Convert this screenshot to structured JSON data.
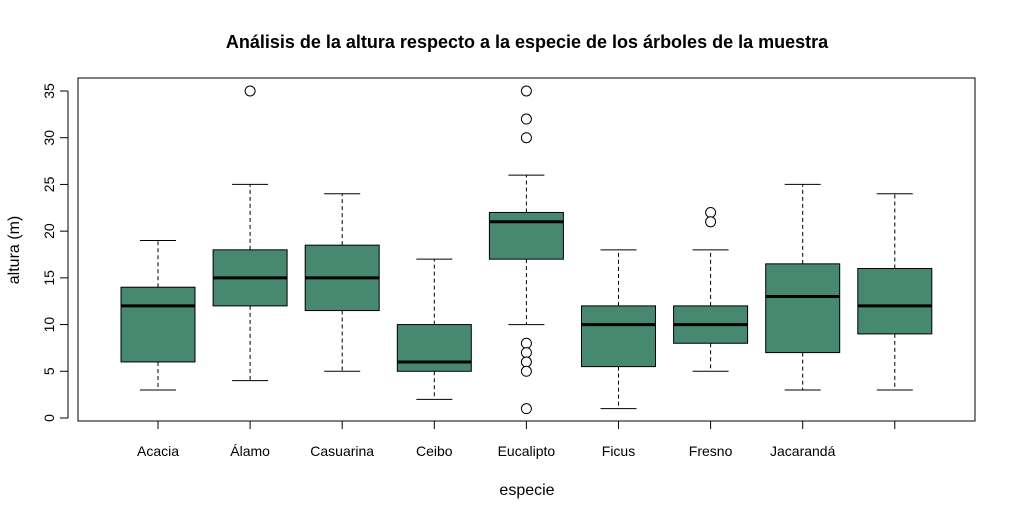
{
  "chart_data": {
    "type": "boxplot",
    "title": "Análisis de la altura respecto a la especie de los árboles de la muestra",
    "xlabel": "especie",
    "ylabel": "altura (m)",
    "ylim": [
      0,
      35
    ],
    "yticks": [
      0,
      5,
      10,
      15,
      20,
      25,
      30,
      35
    ],
    "grid": false,
    "box_color": "#468970",
    "categories": [
      "Acacia",
      "Álamo",
      "Casuarina",
      "Ceibo",
      "Eucalipto",
      "Ficus",
      "Fresno",
      "Jacarandá",
      ""
    ],
    "boxes": [
      {
        "whisker_low": 3,
        "q1": 6,
        "median": 12,
        "q3": 14,
        "whisker_high": 19,
        "outliers": []
      },
      {
        "whisker_low": 4,
        "q1": 12,
        "median": 15,
        "q3": 18,
        "whisker_high": 25,
        "outliers": [
          35
        ]
      },
      {
        "whisker_low": 5,
        "q1": 11.5,
        "median": 15,
        "q3": 18.5,
        "whisker_high": 24,
        "outliers": []
      },
      {
        "whisker_low": 2,
        "q1": 5,
        "median": 6,
        "q3": 10,
        "whisker_high": 17,
        "outliers": []
      },
      {
        "whisker_low": 10,
        "q1": 17,
        "median": 21,
        "q3": 22,
        "whisker_high": 26,
        "outliers": [
          35,
          32,
          30,
          8,
          7,
          6,
          5,
          1
        ]
      },
      {
        "whisker_low": 1,
        "q1": 5.5,
        "median": 10,
        "q3": 12,
        "whisker_high": 18,
        "outliers": []
      },
      {
        "whisker_low": 5,
        "q1": 8,
        "median": 10,
        "q3": 12,
        "whisker_high": 18,
        "outliers": [
          22,
          21
        ]
      },
      {
        "whisker_low": 3,
        "q1": 7,
        "median": 13,
        "q3": 16.5,
        "whisker_high": 25,
        "outliers": []
      },
      {
        "whisker_low": 3,
        "q1": 9,
        "median": 12,
        "q3": 16,
        "whisker_high": 24,
        "outliers": []
      }
    ]
  }
}
